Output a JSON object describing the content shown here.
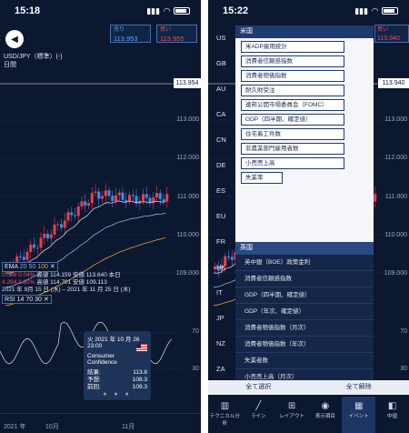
{
  "left": {
    "time": "15:18",
    "sell_label": "売り",
    "sell_price": "113.953",
    "buy_label": "買い",
    "buy_price": "113.955",
    "symbol": "USD/JPY（標準）(-)",
    "period": "日間",
    "price_tag": "113.954",
    "axis": [
      "113.000",
      "112.000",
      "111.000",
      "110.000",
      "109.000"
    ],
    "ema": {
      "label": "EMA",
      "p1": "20",
      "p2": "50",
      "p3": "100"
    },
    "ema_row1": [
      "0.048",
      "0.04%",
      "高値 114.159",
      "安値 113.640",
      "本日"
    ],
    "ema_row2": [
      "4.294",
      "3.92%",
      "高値 114.701",
      "安値 109.113"
    ],
    "ema_row3": "2021 年 9月 15 日 (水) – 2021 年 11 月 25 日 (木)",
    "rsi": {
      "label": "RSI",
      "p1": "14",
      "p2": "70",
      "p3": "30"
    },
    "rsi_axis": [
      "70",
      "30"
    ],
    "tooltip": {
      "date": "火 2021 年 10 月 26 23:00",
      "title1": "Consumer",
      "title2": "Confidence",
      "rows": [
        {
          "k": "結果:",
          "v": "113.8"
        },
        {
          "k": "予想:",
          "v": "108.3"
        },
        {
          "k": "前回:",
          "v": "109.3"
        }
      ]
    },
    "time_labels": [
      "2021 年",
      "10月",
      "11月"
    ]
  },
  "right": {
    "time": "15:22",
    "buy_label": "買い",
    "buy_price": "113.940",
    "price_tag": "113.940",
    "countries": [
      "US",
      "GB",
      "AU",
      "CA",
      "CN",
      "DE",
      "ES",
      "EU",
      "FR",
      "HK",
      "IT",
      "JP",
      "NZ",
      "ZA"
    ],
    "section_us": "米国",
    "us_events": [
      "米ADP雇用統計",
      "消費者信頼感指数",
      "消費者物価指数",
      "耐久財受注",
      "連邦公開市場委員会（FOMC）",
      "GDP（四半期、確定値）",
      "住宅着工件数",
      "非農業部門雇用者数",
      "小売売上高",
      "失業率"
    ],
    "section_gb": "英国",
    "gb_events": [
      "英中銀（BOE）政策金利",
      "消費者信頼感指数",
      "GDP（四半期、確定値）",
      "GDP（年次、確定値）",
      "消費者物価指数（月次）",
      "消費者物価指数（年次）",
      "失業者数",
      "小売売上高（月次）",
      "小売売上高（年次）"
    ],
    "select_all": "全て選択",
    "clear_all": "全て解除",
    "axis": [
      "113.000",
      "112.000",
      "111.000",
      "110.000",
      "109.000"
    ],
    "rsi_axis": [
      "70",
      "30"
    ]
  },
  "toolbar": [
    {
      "icon": "chart-analysis-icon",
      "glyph": "▥",
      "label": "テクニカル分析"
    },
    {
      "icon": "line-icon",
      "glyph": "╱",
      "label": "ライン"
    },
    {
      "icon": "layout-icon",
      "glyph": "⊞",
      "label": "レイアウト"
    },
    {
      "icon": "display-icon",
      "glyph": "◉",
      "label": "表示項目"
    },
    {
      "icon": "event-icon",
      "glyph": "▦",
      "label": "イベント"
    },
    {
      "icon": "order-icon",
      "glyph": "◧",
      "label": "中値"
    }
  ]
}
